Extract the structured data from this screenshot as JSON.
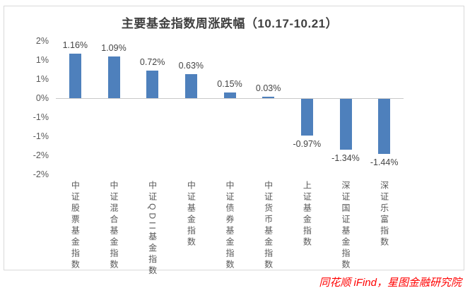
{
  "attribution": "同花顺 iFind，星图金融研究院",
  "colors": {
    "bar": "#4E80BC",
    "title_text": "#404040",
    "axis_text": "#595959",
    "data_label_text": "#444444",
    "axis_line": "#C9C9C9",
    "frame_border": "#D9D9D9",
    "attribution_text": "#FF0000"
  },
  "chart_data": {
    "type": "bar",
    "title": "主要基金指数周涨跌幅（10.17-10.21）",
    "categories": [
      "中证股票基金指数",
      "中证混合基金指数",
      "中证QDII基金指数",
      "中证基金指数",
      "中证债券基金指数",
      "中证货币基金指数",
      "上证基金指数",
      "深证国证基金指数",
      "深证乐富指数"
    ],
    "values": [
      1.16,
      1.09,
      0.72,
      0.63,
      0.15,
      0.03,
      -0.97,
      -1.34,
      -1.44
    ],
    "data_labels": [
      "1.16%",
      "1.09%",
      "0.72%",
      "0.63%",
      "0.15%",
      "0.03%",
      "-0.97%",
      "-1.34%",
      "-1.44%"
    ],
    "xlabel": "",
    "ylabel": "",
    "ylim": [
      -2.0,
      1.5
    ],
    "y_ticks": [
      {
        "label": "2%",
        "value": 1.5
      },
      {
        "label": "1%",
        "value": 1.0
      },
      {
        "label": "1%",
        "value": 0.5
      },
      {
        "label": "0%",
        "value": 0.0
      },
      {
        "label": "-1%",
        "value": -0.5
      },
      {
        "label": "-1%",
        "value": -1.0
      },
      {
        "label": "-2%",
        "value": -1.5
      },
      {
        "label": "-2%",
        "value": -2.0
      }
    ],
    "grid": false,
    "legend": false,
    "data_label_position": "outside_end"
  }
}
